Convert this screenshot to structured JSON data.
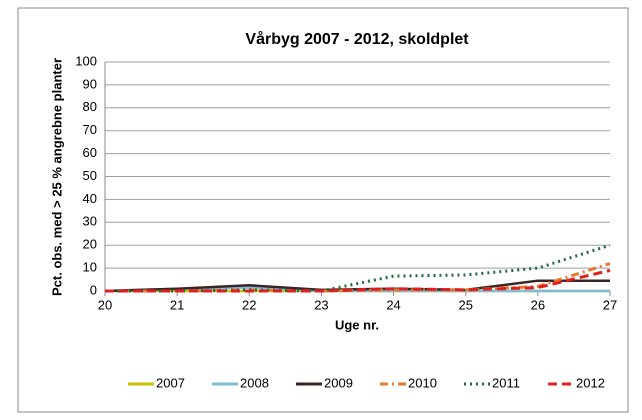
{
  "chart_data": {
    "type": "line",
    "title": "Vårbyg 2007 - 2012, skoldplet",
    "x_label": "Uge nr.",
    "y_label": "Pct. obs. med > 25 % angrebne planter",
    "x": [
      20,
      21,
      22,
      23,
      24,
      25,
      26,
      27
    ],
    "series": [
      {
        "name": "2007",
        "color": "#c8c000",
        "dash": "solid",
        "values": [
          0,
          0,
          0,
          0,
          0,
          0,
          0,
          0
        ]
      },
      {
        "name": "2008",
        "color": "#7fbcd9",
        "dash": "solid",
        "values": [
          0,
          1,
          1.5,
          0,
          0,
          0,
          0,
          0
        ]
      },
      {
        "name": "2009",
        "color": "#3b2424",
        "dash": "solid",
        "values": [
          0,
          1,
          2.5,
          0.5,
          1,
          0.5,
          4.5,
          4.5
        ]
      },
      {
        "name": "2010",
        "color": "#e8782a",
        "dash": "dashdot",
        "values": [
          0,
          0,
          0.5,
          0,
          0.5,
          0.5,
          2,
          12
        ]
      },
      {
        "name": "2011",
        "color": "#1e6b3c",
        "dash": "dot",
        "values": [
          0,
          0,
          0.5,
          0,
          6.5,
          7,
          10,
          20
        ]
      },
      {
        "name": "2012",
        "color": "#e02020",
        "dash": "dash",
        "values": [
          0,
          0,
          0,
          0,
          1,
          0.5,
          1.5,
          9
        ]
      }
    ],
    "xlim": [
      20,
      27
    ],
    "xticks": [
      20,
      21,
      22,
      23,
      24,
      25,
      26,
      27
    ],
    "ylim": [
      0,
      100
    ],
    "yticks": [
      0,
      10,
      20,
      30,
      40,
      50,
      60,
      70,
      80,
      90,
      100
    ],
    "grid": true,
    "legend": "bottom"
  }
}
